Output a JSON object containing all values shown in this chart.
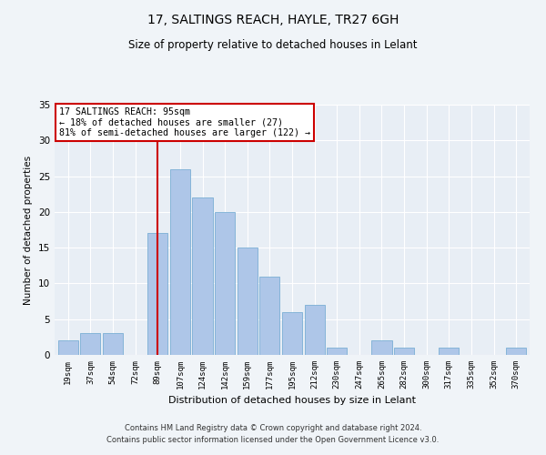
{
  "title": "17, SALTINGS REACH, HAYLE, TR27 6GH",
  "subtitle": "Size of property relative to detached houses in Lelant",
  "xlabel": "Distribution of detached houses by size in Lelant",
  "ylabel": "Number of detached properties",
  "categories": [
    "19sqm",
    "37sqm",
    "54sqm",
    "72sqm",
    "89sqm",
    "107sqm",
    "124sqm",
    "142sqm",
    "159sqm",
    "177sqm",
    "195sqm",
    "212sqm",
    "230sqm",
    "247sqm",
    "265sqm",
    "282sqm",
    "300sqm",
    "317sqm",
    "335sqm",
    "352sqm",
    "370sqm"
  ],
  "values": [
    2,
    3,
    3,
    0,
    17,
    26,
    22,
    20,
    15,
    11,
    6,
    7,
    1,
    0,
    2,
    1,
    0,
    1,
    0,
    0,
    1
  ],
  "bar_color": "#aec6e8",
  "bar_edge_color": "#7aafd4",
  "vline_color": "#cc0000",
  "vline_x_index": 4.5,
  "annotation_text": "17 SALTINGS REACH: 95sqm\n← 18% of detached houses are smaller (27)\n81% of semi-detached houses are larger (122) →",
  "annotation_box_color": "#ffffff",
  "annotation_box_edge_color": "#cc0000",
  "ylim": [
    0,
    35
  ],
  "yticks": [
    0,
    5,
    10,
    15,
    20,
    25,
    30,
    35
  ],
  "background_color": "#e8eef5",
  "grid_color": "#ffffff",
  "fig_bg_color": "#f0f4f8",
  "footer_line1": "Contains HM Land Registry data © Crown copyright and database right 2024.",
  "footer_line2": "Contains public sector information licensed under the Open Government Licence v3.0."
}
